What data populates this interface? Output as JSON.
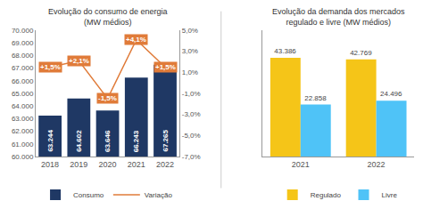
{
  "chart_data": [
    {
      "type": "bar",
      "title": "Evolução do consumo de energia\n(MW médios)",
      "categories": [
        "2018",
        "2019",
        "2020",
        "2021",
        "2022"
      ],
      "series": [
        {
          "name": "Consumo",
          "type": "bar",
          "color": "#1f3864",
          "values": [
            63244,
            64602,
            63646,
            66243,
            67265
          ],
          "value_labels": [
            "63.244",
            "64.602",
            "63.646",
            "66.243",
            "67.265"
          ]
        },
        {
          "name": "Variação",
          "type": "line",
          "axis": "y2",
          "color": "#e07b39",
          "values": [
            1.5,
            2.1,
            -1.5,
            4.1,
            1.5
          ],
          "value_labels": [
            "+1,5%",
            "+2,1%",
            "-1,5%",
            "+4,1%",
            "+1,5%"
          ]
        }
      ],
      "ylim": [
        60000,
        70000
      ],
      "yticks": [
        {
          "value": 60000,
          "label": "60.000"
        },
        {
          "value": 61000,
          "label": "61.000"
        },
        {
          "value": 62000,
          "label": "62.000"
        },
        {
          "value": 63000,
          "label": "63.000"
        },
        {
          "value": 64000,
          "label": "64.000"
        },
        {
          "value": 65000,
          "label": "65.000"
        },
        {
          "value": 66000,
          "label": "66.000"
        },
        {
          "value": 67000,
          "label": "67.000"
        },
        {
          "value": 68000,
          "label": "68.000"
        },
        {
          "value": 69000,
          "label": "69.000"
        },
        {
          "value": 70000,
          "label": "70.000"
        }
      ],
      "y2lim": [
        -7.0,
        5.0
      ],
      "y2ticks": [
        {
          "value": -7.0,
          "label": "-7,0%"
        },
        {
          "value": -5.0,
          "label": "-5,0%"
        },
        {
          "value": -3.0,
          "label": "-3,0%"
        },
        {
          "value": -1.0,
          "label": "-1,0%"
        },
        {
          "value": 1.0,
          "label": "1,0%"
        },
        {
          "value": 3.0,
          "label": "3,0%"
        },
        {
          "value": 5.0,
          "label": "5,0%"
        }
      ],
      "grid": false,
      "legend": "bottom",
      "data_labels": true
    },
    {
      "type": "bar",
      "title": "Evolução da demanda dos mercados\nregulado e livre (MW médios)",
      "categories": [
        "2021",
        "2022"
      ],
      "series": [
        {
          "name": "Regulado",
          "color": "#f5c518",
          "values": [
            43386,
            42769
          ],
          "value_labels": [
            "43.386",
            "42.769"
          ]
        },
        {
          "name": "Livre",
          "color": "#4fc3f7",
          "values": [
            22858,
            24496
          ],
          "value_labels": [
            "22.858",
            "24.496"
          ]
        }
      ],
      "ylim": [
        0,
        55534.08
      ],
      "tick_labels": "x",
      "grid": false,
      "legend": "bottom",
      "data_labels": true
    }
  ]
}
